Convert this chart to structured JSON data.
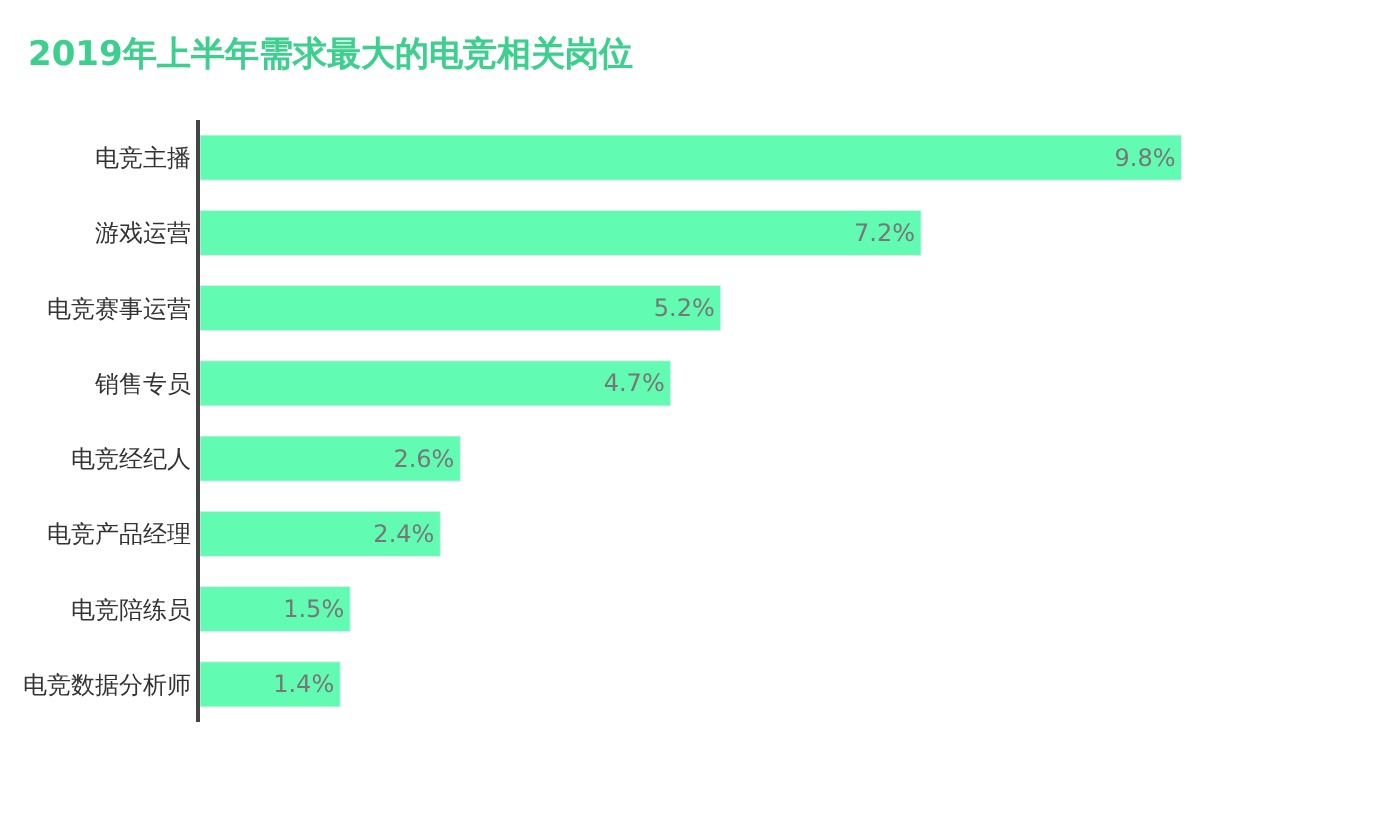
{
  "chart_data": {
    "type": "bar",
    "orientation": "horizontal",
    "title": "2019年上半年需求最大的电竞相关岗位",
    "categories": [
      "电竞主播",
      "游戏运营",
      "电竞赛事运营",
      "销售专员",
      "电竞经纪人",
      "电竞产品经理",
      "电竞陪练员",
      "电竞数据分析师"
    ],
    "values": [
      9.8,
      7.2,
      5.2,
      4.7,
      2.6,
      2.4,
      1.5,
      1.4
    ],
    "value_labels": [
      "9.8%",
      "7.2%",
      "5.2%",
      "4.7%",
      "2.6%",
      "2.4%",
      "1.5%",
      "1.4%"
    ],
    "color": "#62fbb2"
  }
}
